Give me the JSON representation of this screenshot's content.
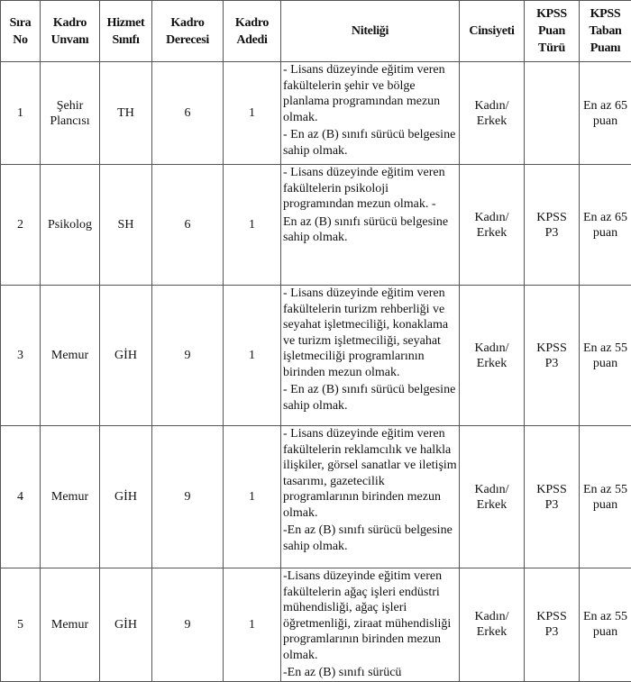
{
  "headers": [
    [
      "Sıra",
      "No"
    ],
    [
      "Kadro",
      "Unvanı"
    ],
    [
      "Hizmet",
      "Sınıfı"
    ],
    [
      "Kadro",
      "Derecesi"
    ],
    [
      "Kadro",
      "Adedi"
    ],
    [
      "Niteliği"
    ],
    [
      "Cinsiyeti"
    ],
    [
      "KPSS",
      "Puan",
      "Türü"
    ],
    [
      "KPSS",
      "Taban",
      "Puanı"
    ]
  ],
  "rows": [
    {
      "sira": "1",
      "unvan": [
        "Şehir",
        "Plancısı"
      ],
      "sinif": "TH",
      "derece": "6",
      "adet": "1",
      "nitelik": [
        "- Lisans düzeyinde eğitim veren fakültelerin şehir ve bölge planlama programından mezun olmak.",
        "- En az (B) sınıfı sürücü belgesine sahip olmak."
      ],
      "cinsiyet": [
        "Kadın/",
        "Erkek"
      ],
      "puan_turu": [],
      "taban": [
        "En az 65",
        "puan"
      ]
    },
    {
      "sira": "2",
      "unvan": [
        "Psikolog"
      ],
      "sinif": "SH",
      "derece": "6",
      "adet": "1",
      "nitelik": [
        "- Lisans düzeyinde eğitim veren fakültelerin psikoloji programından mezun olmak.                    -",
        "En az (B) sınıfı sürücü belgesine sahip olmak."
      ],
      "cinsiyet": [
        "Kadın/",
        "Erkek"
      ],
      "puan_turu": [
        "KPSS",
        "P3"
      ],
      "taban": [
        "En az 65",
        "puan"
      ]
    },
    {
      "sira": "3",
      "unvan": [
        "Memur"
      ],
      "sinif": "GİH",
      "derece": "9",
      "adet": "1",
      "nitelik": [
        "- Lisans düzeyinde eğitim veren fakültelerin turizm rehberliği ve seyahat işletmeciliği, konaklama ve turizm   işletmeciliği, seyahat işletmeciliği programlarının birinden mezun olmak.",
        "- En az (B) sınıfı sürücü belgesine sahip olmak."
      ],
      "cinsiyet": [
        "Kadın/",
        "Erkek"
      ],
      "puan_turu": [
        "KPSS",
        "P3"
      ],
      "taban": [
        "En az 55",
        "puan"
      ]
    },
    {
      "sira": "4",
      "unvan": [
        "Memur"
      ],
      "sinif": "GİH",
      "derece": "9",
      "adet": "1",
      "nitelik": [
        "- Lisans düzeyinde eğitim veren fakültelerin reklamcılık ve halkla ilişkiler, görsel sanatlar ve iletişim tasarımı, gazetecilik programlarının birinden mezun olmak.",
        "-En az (B) sınıfı sürücü belgesine sahip olmak."
      ],
      "cinsiyet": [
        "Kadın/",
        "Erkek"
      ],
      "puan_turu": [
        "KPSS",
        "P3"
      ],
      "taban": [
        "En az 55",
        "puan"
      ]
    },
    {
      "sira": "5",
      "unvan": [
        "Memur"
      ],
      "sinif": "GİH",
      "derece": "9",
      "adet": "1",
      "nitelik": [
        "-Lisans düzeyinde eğitim veren fakültelerin ağaç işleri endüstri mühendisliği, ağaç işleri öğretmenliği, ziraat mühendisliği programlarının birinden mezun olmak.",
        "-En az (B) sınıfı sürücü"
      ],
      "cinsiyet": [
        "Kadın/",
        "Erkek"
      ],
      "puan_turu": [
        "KPSS",
        "P3"
      ],
      "taban": [
        "En az 55",
        "puan"
      ]
    }
  ]
}
